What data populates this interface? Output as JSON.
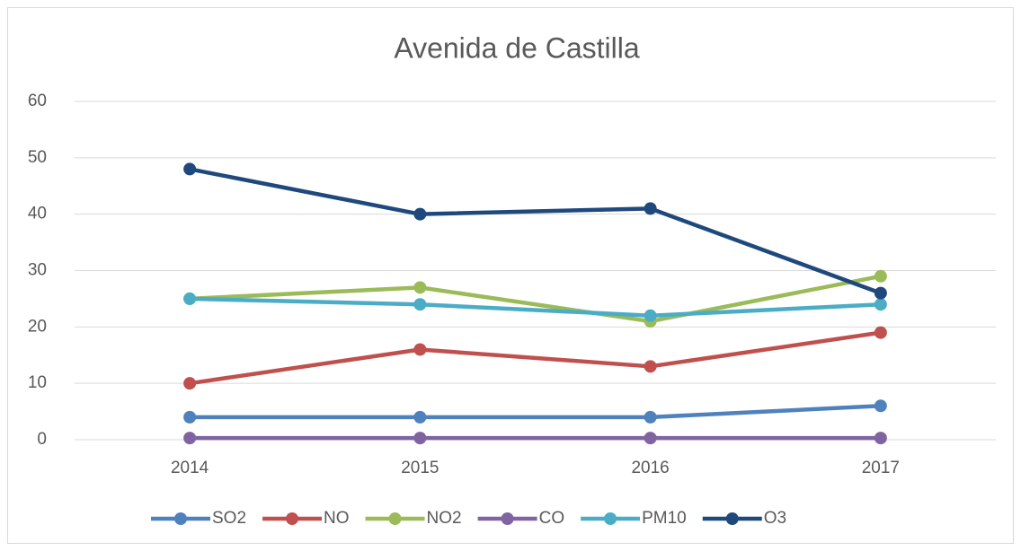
{
  "chart_data": {
    "type": "line",
    "title": "Avenida de Castilla",
    "categories": [
      "2014",
      "2015",
      "2016",
      "2017"
    ],
    "series": [
      {
        "name": "SO2",
        "color": "#4f81bd",
        "values": [
          4,
          4,
          4,
          6
        ]
      },
      {
        "name": "NO",
        "color": "#c0504d",
        "values": [
          10,
          16,
          13,
          19
        ]
      },
      {
        "name": "NO2",
        "color": "#9bbb59",
        "values": [
          25,
          27,
          21,
          29
        ]
      },
      {
        "name": "CO",
        "color": "#8064a2",
        "values": [
          0.3,
          0.3,
          0.3,
          0.3
        ]
      },
      {
        "name": "PM10",
        "color": "#4bacc6",
        "values": [
          25,
          24,
          22,
          24
        ]
      },
      {
        "name": "O3",
        "color": "#1f497d",
        "values": [
          48,
          40,
          41,
          26
        ]
      }
    ],
    "ylim": [
      0,
      60
    ],
    "yticks": [
      0,
      10,
      20,
      30,
      40,
      50,
      60
    ],
    "grid": true,
    "legend": "bottom"
  }
}
